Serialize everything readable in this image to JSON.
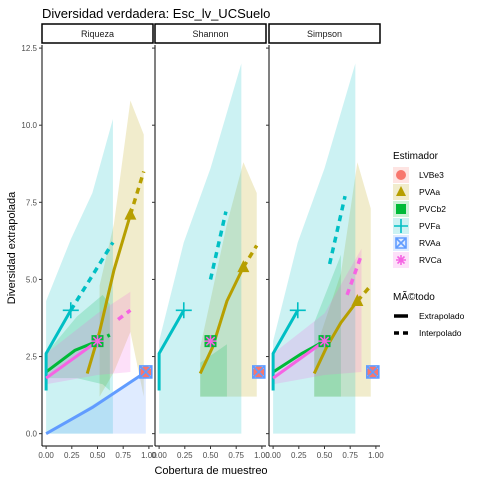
{
  "chart_data": {
    "type": "line",
    "title": "Diversidad verdadera: Esc_lv_UCSuelo",
    "xlabel": "Cobertura de muestreo",
    "ylabel": "Diversidad extrapolada",
    "xlim": [
      -0.04,
      1.04
    ],
    "ylim": [
      -0.4,
      12.6
    ],
    "x_ticks": [
      "0.00",
      "0.25",
      "0.50",
      "0.75",
      "1.00"
    ],
    "x_tick_values": [
      0,
      0.25,
      0.5,
      0.75,
      1.0
    ],
    "y_ticks": [
      "0.0",
      "2.5",
      "5.0",
      "7.5",
      "10.0",
      "12.5"
    ],
    "y_tick_values": [
      0,
      2.5,
      5.0,
      7.5,
      10.0,
      12.5
    ],
    "grid": false,
    "legend_position": "right",
    "legend": {
      "estimador_title": "Estimador",
      "metodo_title": "MÃ©todo",
      "extrapolado_label": "Extrapolado",
      "interpolado_label": "Interpolado"
    },
    "series": [
      {
        "name": "LVBe3",
        "color": "#F8766D",
        "shape": "circle"
      },
      {
        "name": "PVAa",
        "color": "#B79F00",
        "shape": "triangle"
      },
      {
        "name": "PVCb2",
        "color": "#00BA38",
        "shape": "square"
      },
      {
        "name": "PVFa",
        "color": "#00BFC4",
        "shape": "plus"
      },
      {
        "name": "RVAa",
        "color": "#619CFF",
        "shape": "boxx"
      },
      {
        "name": "RVCa",
        "color": "#F564E3",
        "shape": "asterisk"
      }
    ],
    "facets": [
      {
        "label": "Riqueza",
        "curves": [
          {
            "series": "LVBe3",
            "ref": [
              0.97,
              2.0
            ],
            "interp": [],
            "extrap": [],
            "ribbon": []
          },
          {
            "series": "PVAa",
            "ref": [
              0.82,
              7.1
            ],
            "interp": [
              [
                0.4,
                1.95
              ],
              [
                0.52,
                3.3
              ],
              [
                0.66,
                5.3
              ],
              [
                0.82,
                7.1
              ]
            ],
            "extrap": [
              [
                0.82,
                7.1
              ],
              [
                0.95,
                8.5
              ]
            ],
            "ribbon": [
              [
                0.52,
                1.2,
                4.8
              ],
              [
                0.66,
                2.0,
                6.8
              ],
              [
                0.82,
                3.3,
                10.8
              ],
              [
                0.95,
                1.2,
                9.7
              ]
            ]
          },
          {
            "series": "PVCb2",
            "ref": [
              0.5,
              3.0
            ],
            "interp": [
              [
                0.0,
                2.0
              ],
              [
                0.28,
                2.7
              ],
              [
                0.5,
                3.0
              ]
            ],
            "extrap": [
              [
                0.5,
                3.0
              ],
              [
                0.62,
                3.2
              ]
            ],
            "ribbon": [
              [
                0.0,
                1.8,
                2.6
              ],
              [
                0.3,
                1.8,
                3.8
              ],
              [
                0.55,
                1.6,
                4.5
              ],
              [
                0.62,
                1.4,
                4.2
              ]
            ]
          },
          {
            "series": "PVFa",
            "ref": [
              0.24,
              4.0
            ],
            "interp": [
              [
                0.0,
                1.4
              ],
              [
                0.0,
                2.6
              ],
              [
                0.24,
                4.0
              ]
            ],
            "extrap": [
              [
                0.24,
                4.0
              ],
              [
                0.65,
                6.2
              ]
            ],
            "ribbon": [
              [
                0.0,
                0.0,
                4.3
              ],
              [
                0.24,
                0.0,
                6.3
              ],
              [
                0.45,
                0.0,
                7.8
              ],
              [
                0.65,
                0.0,
                10.2
              ]
            ]
          },
          {
            "series": "RVAa",
            "ref": [
              0.97,
              2.0
            ],
            "interp": [
              [
                0.0,
                0.0
              ],
              [
                0.45,
                0.85
              ],
              [
                0.97,
                2.0
              ]
            ],
            "extrap": [],
            "ribbon": [
              [
                0.0,
                0.0,
                0.0
              ],
              [
                0.97,
                0.0,
                2.0
              ]
            ]
          },
          {
            "series": "RVCa",
            "ref": [
              0.5,
              3.0
            ],
            "interp": [
              [
                0.0,
                1.8
              ],
              [
                0.5,
                3.0
              ]
            ],
            "extrap": [
              [
                0.7,
                3.7
              ],
              [
                0.82,
                4.0
              ]
            ],
            "ribbon": [
              [
                0.0,
                1.6,
                2.6
              ],
              [
                0.5,
                1.9,
                3.9
              ],
              [
                0.82,
                2.0,
                4.6
              ]
            ]
          }
        ]
      },
      {
        "label": "Shannon",
        "curves": [
          {
            "series": "LVBe3",
            "ref": [
              0.97,
              2.0
            ],
            "interp": [],
            "extrap": [],
            "ribbon": []
          },
          {
            "series": "PVAa",
            "ref": [
              0.82,
              5.4
            ],
            "interp": [
              [
                0.4,
                1.95
              ],
              [
                0.52,
                2.8
              ],
              [
                0.66,
                4.3
              ],
              [
                0.82,
                5.4
              ]
            ],
            "extrap": [
              [
                0.82,
                5.4
              ],
              [
                0.95,
                6.1
              ]
            ],
            "ribbon": [
              [
                0.4,
                1.2,
                2.8
              ],
              [
                0.66,
                1.2,
                6.8
              ],
              [
                0.82,
                1.2,
                8.8
              ],
              [
                0.95,
                1.2,
                7.8
              ]
            ]
          },
          {
            "series": "PVCb2",
            "ref": [
              0.5,
              3.0
            ],
            "interp": [],
            "extrap": [],
            "ribbon": [
              [
                0.4,
                1.2,
                2.3
              ],
              [
                0.66,
                1.2,
                2.9
              ]
            ]
          },
          {
            "series": "PVFa",
            "ref": [
              0.24,
              4.0
            ],
            "interp": [
              [
                0.0,
                1.4
              ],
              [
                0.0,
                2.6
              ],
              [
                0.24,
                4.0
              ]
            ],
            "extrap": [
              [
                0.5,
                5.0
              ],
              [
                0.65,
                7.2
              ]
            ],
            "ribbon": [
              [
                0.0,
                0.0,
                3.0
              ],
              [
                0.24,
                0.0,
                6.2
              ],
              [
                0.5,
                0.0,
                8.6
              ],
              [
                0.8,
                0.0,
                12.0
              ]
            ]
          },
          {
            "series": "RVAa",
            "ref": [
              0.97,
              2.0
            ],
            "interp": [],
            "extrap": [],
            "ribbon": []
          },
          {
            "series": "RVCa",
            "ref": [
              0.5,
              3.0
            ],
            "interp": [],
            "extrap": [],
            "ribbon": []
          }
        ]
      },
      {
        "label": "Simpson",
        "curves": [
          {
            "series": "LVBe3",
            "ref": [
              0.97,
              2.0
            ],
            "interp": [],
            "extrap": [],
            "ribbon": []
          },
          {
            "series": "PVAa",
            "ref": [
              0.82,
              4.3
            ],
            "interp": [
              [
                0.4,
                1.95
              ],
              [
                0.52,
                2.8
              ],
              [
                0.66,
                3.6
              ],
              [
                0.82,
                4.3
              ]
            ],
            "extrap": [
              [
                0.82,
                4.3
              ],
              [
                0.95,
                4.8
              ]
            ],
            "ribbon": [
              [
                0.4,
                1.2,
                2.6
              ],
              [
                0.66,
                1.2,
                5.2
              ],
              [
                0.82,
                1.2,
                8.8
              ],
              [
                0.95,
                1.2,
                7.3
              ]
            ]
          },
          {
            "series": "PVCb2",
            "ref": [
              0.5,
              3.0
            ],
            "interp": [
              [
                0.0,
                2.0
              ],
              [
                0.28,
                2.6
              ],
              [
                0.5,
                3.0
              ]
            ],
            "extrap": [],
            "ribbon": [
              [
                0.4,
                1.2,
                3.6
              ],
              [
                0.66,
                1.2,
                5.8
              ]
            ]
          },
          {
            "series": "PVFa",
            "ref": [
              0.24,
              4.0
            ],
            "interp": [
              [
                0.0,
                1.4
              ],
              [
                0.0,
                2.6
              ],
              [
                0.24,
                4.0
              ]
            ],
            "extrap": [
              [
                0.55,
                5.5
              ],
              [
                0.7,
                7.7
              ]
            ],
            "ribbon": [
              [
                0.0,
                0.0,
                3.0
              ],
              [
                0.24,
                0.0,
                6.2
              ],
              [
                0.5,
                0.0,
                8.6
              ],
              [
                0.8,
                0.0,
                12.0
              ]
            ]
          },
          {
            "series": "RVAa",
            "ref": [
              0.97,
              2.0
            ],
            "interp": [],
            "extrap": [],
            "ribbon": []
          },
          {
            "series": "RVCa",
            "ref": [
              0.5,
              3.0
            ],
            "interp": [
              [
                0.0,
                1.8
              ],
              [
                0.5,
                3.0
              ]
            ],
            "extrap": [
              [
                0.72,
                4.5
              ],
              [
                0.86,
                5.8
              ]
            ],
            "ribbon": [
              [
                0.0,
                1.6,
                2.6
              ],
              [
                0.5,
                1.9,
                3.9
              ],
              [
                0.86,
                2.0,
                6.0
              ]
            ]
          }
        ]
      }
    ]
  }
}
